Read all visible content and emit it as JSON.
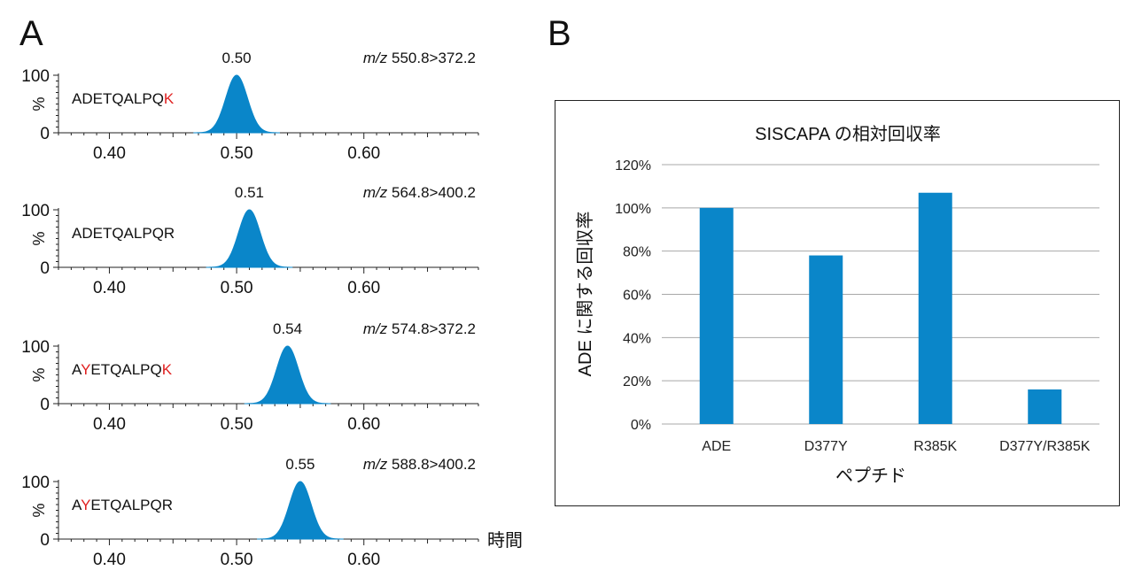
{
  "panel_a_label": "A",
  "panel_b_label": "B",
  "chart_data": [
    {
      "type": "line",
      "panel": "A",
      "xlabel": "時間",
      "ylabel": "%",
      "xlim": [
        0.36,
        0.69
      ],
      "ylim": [
        0,
        100
      ],
      "xticks": [
        "0.40",
        "0.50",
        "0.60"
      ],
      "yticks": [
        "0",
        "100"
      ],
      "color": "#0a86c9",
      "traces": [
        {
          "peptide": [
            "ADETQALPQ",
            "K"
          ],
          "apex": 0.5,
          "apex_label": "0.50",
          "mz_prefix": "m/z",
          "mz": "550.8>372.2"
        },
        {
          "peptide": [
            "ADETQALPQR"
          ],
          "apex": 0.51,
          "apex_label": "0.51",
          "mz_prefix": "m/z",
          "mz": "564.8>400.2"
        },
        {
          "peptide": [
            "A",
            "Y",
            "ETQALPQ",
            "K"
          ],
          "apex": 0.54,
          "apex_label": "0.54",
          "mz_prefix": "m/z",
          "mz": "574.8>372.2"
        },
        {
          "peptide": [
            "A",
            "Y",
            "ETQALPQR"
          ],
          "apex": 0.55,
          "apex_label": "0.55",
          "mz_prefix": "m/z",
          "mz": "588.8>400.2"
        }
      ]
    },
    {
      "type": "bar",
      "panel": "B",
      "title": "SISCAPA の相対回収率",
      "xlabel": "ペプチド",
      "ylabel": "ADE に関する回収率",
      "categories": [
        "ADE",
        "D377Y",
        "R385K",
        "D377Y/R385K"
      ],
      "values": [
        100,
        78,
        107,
        16
      ],
      "ylim": [
        0,
        120
      ],
      "yticks": [
        "0%",
        "20%",
        "40%",
        "60%",
        "80%",
        "100%",
        "120%"
      ],
      "color": "#0a86c9"
    }
  ]
}
